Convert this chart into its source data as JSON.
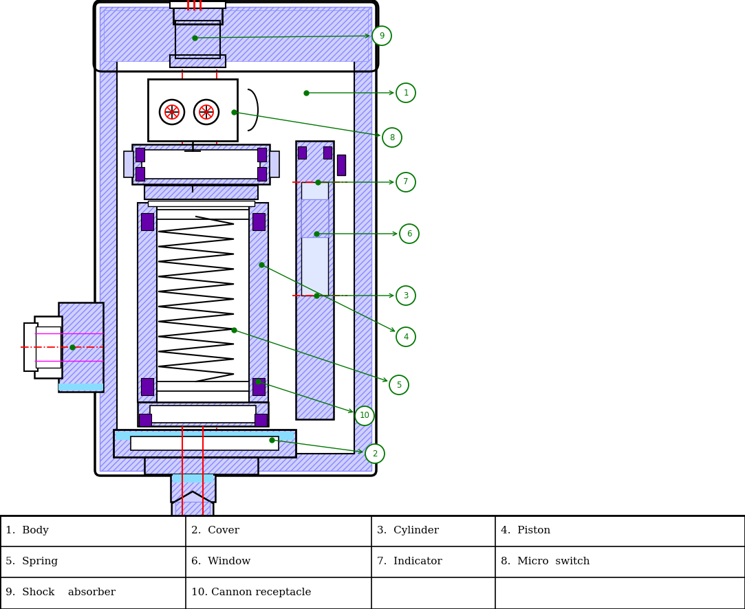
{
  "table_data": [
    [
      "1.  Body",
      "2.  Cover",
      "3.  Cylinder",
      "4.  Piston"
    ],
    [
      "5.  Spring",
      "6.  Window",
      "7.  Indicator",
      "8.  Micro  switch"
    ],
    [
      "9.  Shock    absorber",
      "10. Cannon receptacle",
      "",
      ""
    ]
  ],
  "hatch_color": "#8888ff",
  "body_fill": "#d0d0ff",
  "red_color": "#ff0000",
  "green_color": "#007700",
  "magenta_color": "#ff00ff",
  "cyan_color": "#88ddff",
  "purple_color": "#6600aa",
  "blue_color": "#0000cc",
  "bg_color": "#ffffff",
  "black": "#000000"
}
